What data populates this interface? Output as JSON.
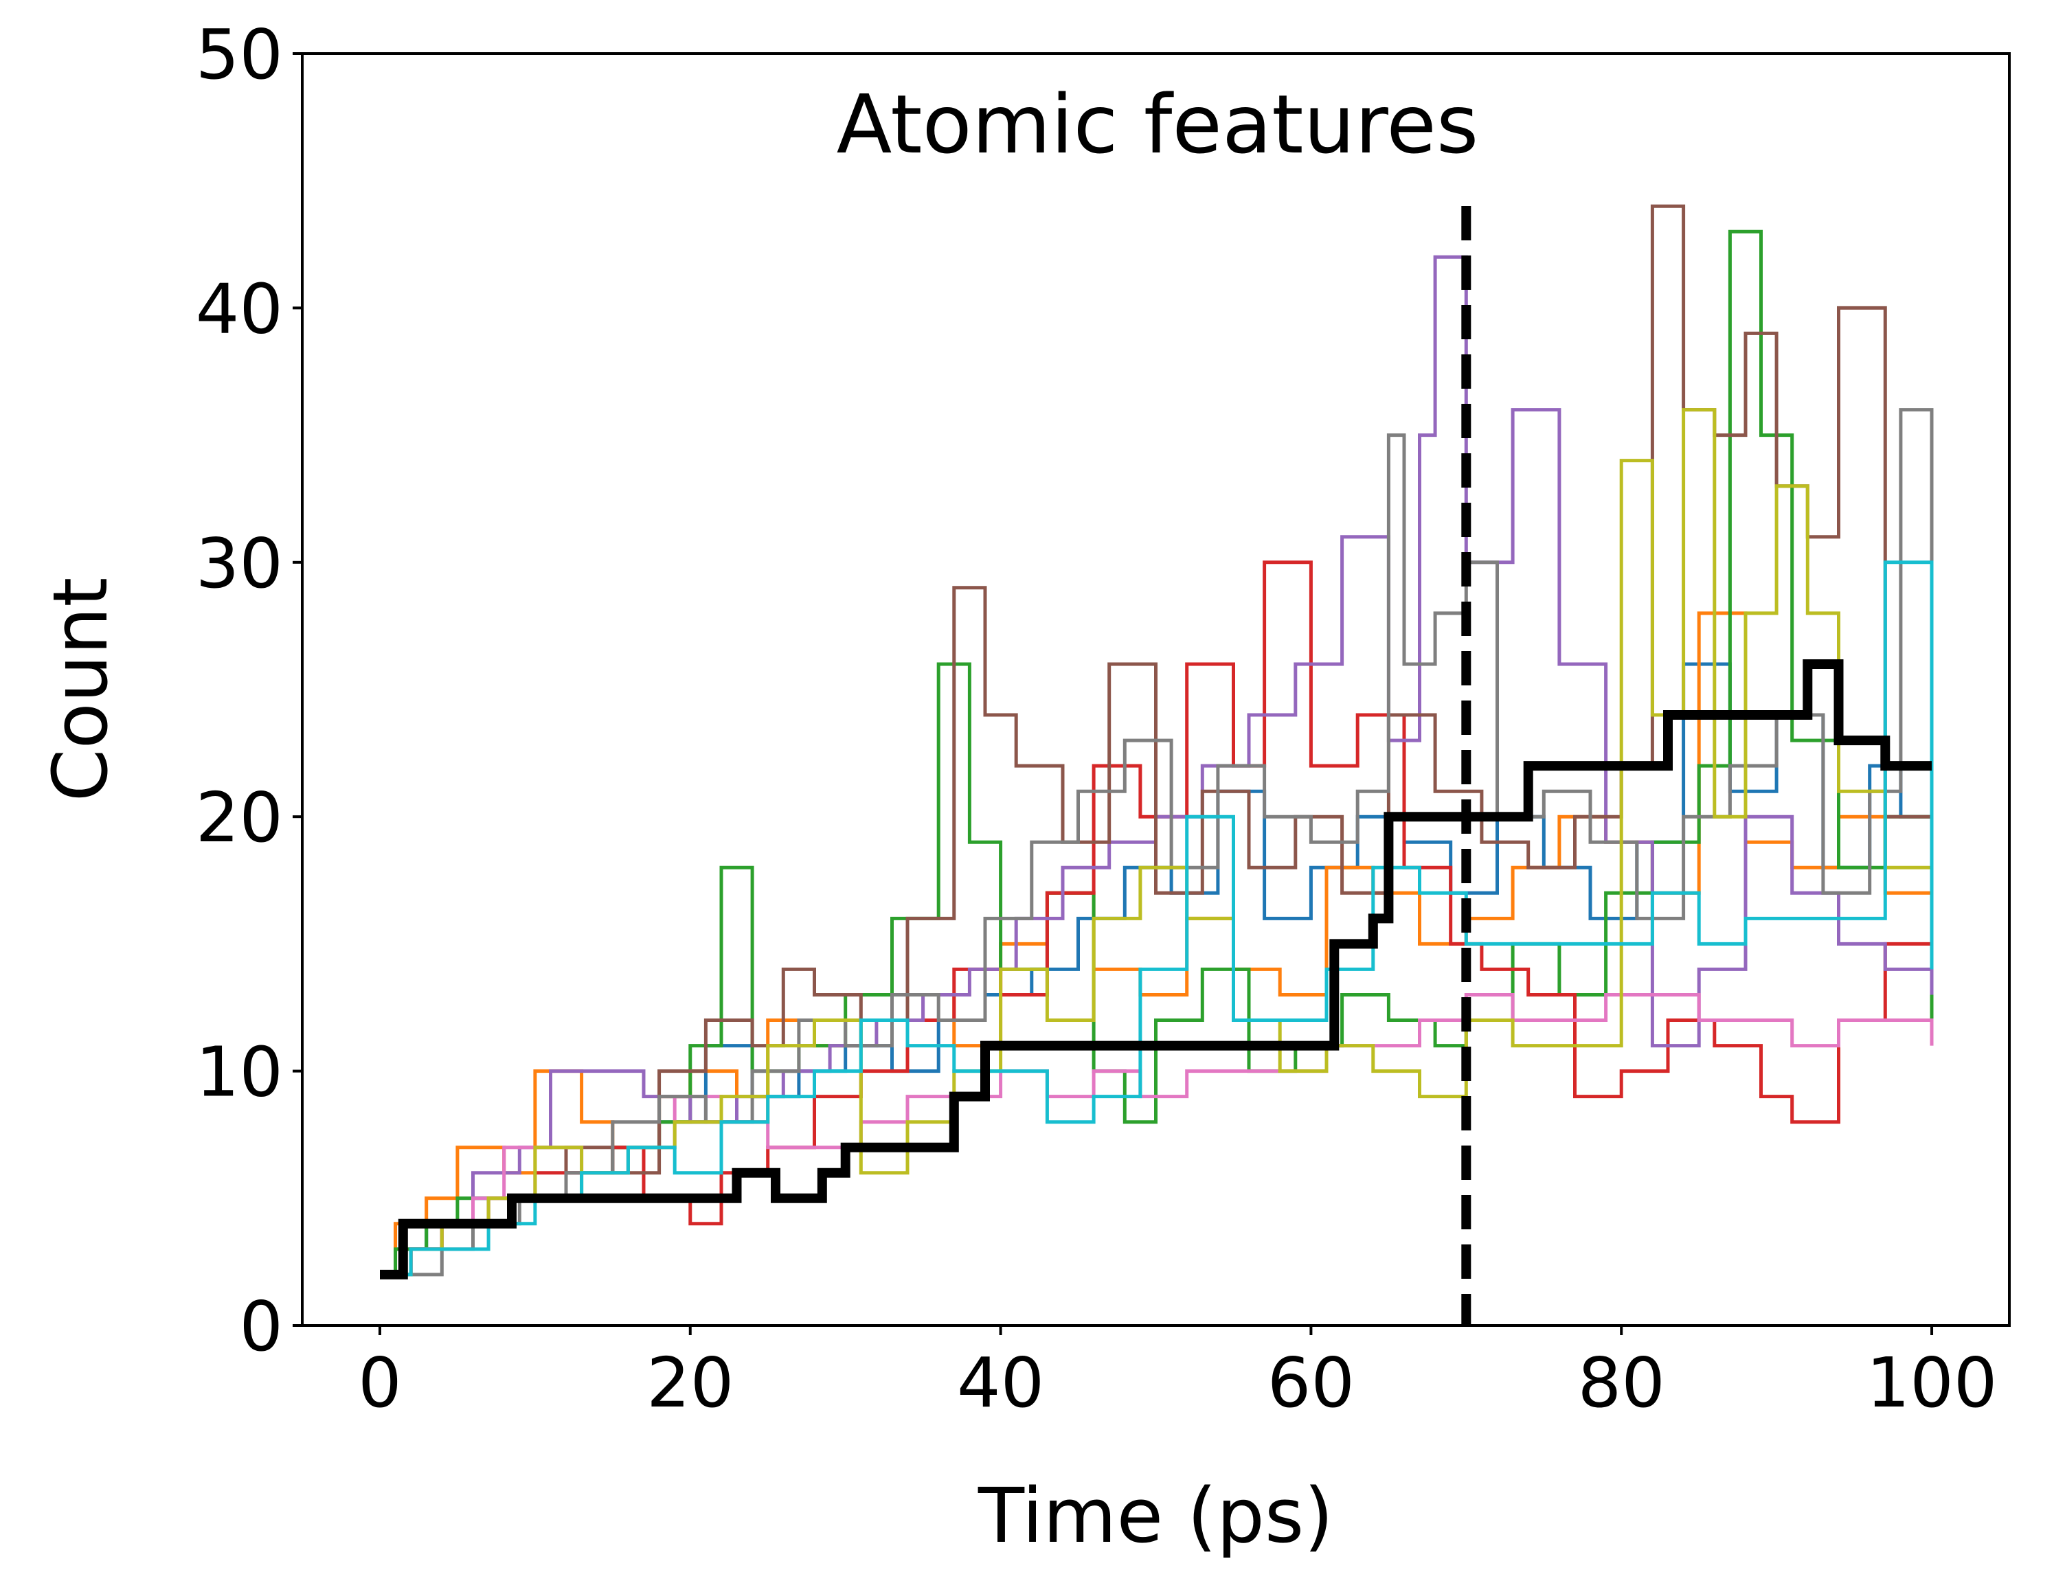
{
  "chart_data": {
    "type": "line",
    "title": "Atomic features",
    "xlabel": "Time (ps)",
    "ylabel": "Count",
    "xlim": [
      -5,
      105
    ],
    "ylim": [
      0,
      50
    ],
    "xticks": [
      0,
      20,
      40,
      60,
      80,
      100
    ],
    "yticks": [
      0,
      10,
      20,
      30,
      40,
      50
    ],
    "grid": false,
    "legend": "none",
    "series": [
      {
        "color": "#1f77b4",
        "x": [
          0,
          1,
          3,
          6,
          9,
          12,
          15,
          18,
          21,
          24,
          27,
          30,
          33,
          36,
          39,
          42,
          45,
          48,
          51,
          54,
          57,
          60,
          63,
          66,
          69,
          72,
          75,
          78,
          81,
          84,
          87,
          90,
          93,
          96,
          98,
          100
        ],
        "y": [
          2,
          3,
          4,
          5,
          5,
          6,
          7,
          8,
          11,
          9,
          10,
          11,
          10,
          12,
          13,
          14,
          16,
          18,
          17,
          21,
          16,
          18,
          20,
          19,
          17,
          20,
          18,
          16,
          19,
          26,
          21,
          24,
          18,
          22,
          20,
          24
        ]
      },
      {
        "color": "#ff7f0e",
        "x": [
          0,
          1,
          3,
          5,
          8,
          10,
          13,
          15,
          18,
          20,
          23,
          25,
          28,
          31,
          34,
          37,
          40,
          43,
          46,
          49,
          52,
          55,
          58,
          61,
          64,
          67,
          70,
          73,
          76,
          79,
          82,
          85,
          88,
          91,
          94,
          97,
          100
        ],
        "y": [
          2,
          4,
          5,
          7,
          6,
          10,
          8,
          7,
          9,
          10,
          8,
          12,
          11,
          12,
          13,
          11,
          15,
          17,
          14,
          13,
          16,
          14,
          13,
          18,
          17,
          15,
          16,
          18,
          20,
          19,
          17,
          28,
          19,
          18,
          20,
          17,
          12
        ]
      },
      {
        "color": "#2ca02c",
        "x": [
          0,
          1,
          3,
          5,
          8,
          10,
          13,
          15,
          18,
          20,
          22,
          24,
          27,
          30,
          33,
          36,
          38,
          40,
          43,
          46,
          48,
          50,
          53,
          56,
          59,
          62,
          65,
          68,
          70,
          73,
          76,
          79,
          82,
          85,
          87,
          89,
          91,
          94,
          97,
          100
        ],
        "y": [
          2,
          3,
          4,
          5,
          5,
          5,
          6,
          7,
          8,
          11,
          18,
          10,
          11,
          13,
          16,
          26,
          19,
          14,
          17,
          10,
          8,
          12,
          14,
          10,
          11,
          13,
          12,
          11,
          12,
          15,
          13,
          17,
          19,
          22,
          43,
          35,
          23,
          18,
          20,
          12
        ]
      },
      {
        "color": "#d62728",
        "x": [
          0,
          2,
          4,
          7,
          10,
          13,
          15,
          17,
          20,
          22,
          25,
          28,
          31,
          34,
          37,
          40,
          43,
          46,
          49,
          52,
          55,
          57,
          60,
          63,
          66,
          69,
          71,
          74,
          77,
          80,
          83,
          86,
          89,
          91,
          94,
          97,
          100
        ],
        "y": [
          2,
          3,
          4,
          5,
          6,
          6,
          7,
          5,
          4,
          6,
          7,
          9,
          10,
          12,
          14,
          13,
          17,
          22,
          20,
          26,
          22,
          30,
          22,
          24,
          18,
          15,
          14,
          13,
          9,
          10,
          12,
          11,
          9,
          8,
          12,
          15,
          14
        ]
      },
      {
        "color": "#9467bd",
        "x": [
          0,
          2,
          4,
          6,
          9,
          11,
          14,
          17,
          20,
          23,
          26,
          29,
          32,
          35,
          38,
          41,
          44,
          47,
          50,
          53,
          56,
          59,
          62,
          65,
          67,
          68,
          70,
          73,
          76,
          79,
          82,
          85,
          88,
          91,
          94,
          97,
          100
        ],
        "y": [
          2,
          3,
          4,
          6,
          7,
          10,
          10,
          9,
          8,
          9,
          10,
          11,
          12,
          13,
          14,
          16,
          18,
          19,
          20,
          22,
          24,
          26,
          31,
          23,
          35,
          42,
          30,
          36,
          26,
          19,
          11,
          14,
          20,
          17,
          15,
          14,
          13
        ]
      },
      {
        "color": "#8c564b",
        "x": [
          0,
          2,
          4,
          7,
          10,
          12,
          15,
          18,
          21,
          24,
          26,
          28,
          31,
          34,
          37,
          39,
          41,
          44,
          47,
          50,
          53,
          56,
          59,
          62,
          65,
          68,
          71,
          74,
          77,
          80,
          82,
          84,
          86,
          88,
          90,
          92,
          94,
          97,
          100
        ],
        "y": [
          2,
          3,
          4,
          5,
          5,
          7,
          6,
          10,
          12,
          11,
          14,
          13,
          12,
          16,
          29,
          24,
          22,
          19,
          26,
          17,
          21,
          18,
          20,
          17,
          24,
          21,
          19,
          18,
          20,
          22,
          44,
          36,
          35,
          39,
          33,
          31,
          40,
          20,
          15
        ]
      },
      {
        "color": "#e377c2",
        "x": [
          0,
          2,
          4,
          6,
          8,
          10,
          13,
          16,
          19,
          22,
          25,
          28,
          31,
          34,
          37,
          40,
          43,
          46,
          49,
          52,
          55,
          58,
          61,
          64,
          67,
          70,
          73,
          76,
          79,
          82,
          85,
          88,
          91,
          94,
          97,
          100
        ],
        "y": [
          2,
          3,
          4,
          5,
          7,
          7,
          6,
          7,
          9,
          8,
          7,
          7,
          8,
          9,
          9,
          10,
          9,
          10,
          9,
          10,
          10,
          10,
          11,
          11,
          12,
          13,
          12,
          12,
          13,
          13,
          12,
          12,
          11,
          12,
          12,
          11
        ]
      },
      {
        "color": "#7f7f7f",
        "x": [
          0,
          2,
          4,
          6,
          9,
          12,
          15,
          18,
          21,
          24,
          27,
          30,
          33,
          36,
          39,
          42,
          45,
          48,
          51,
          54,
          57,
          60,
          63,
          65,
          66,
          68,
          70,
          72,
          75,
          78,
          81,
          84,
          87,
          90,
          93,
          96,
          98,
          100
        ],
        "y": [
          2,
          2,
          3,
          4,
          5,
          6,
          8,
          9,
          8,
          10,
          12,
          11,
          13,
          12,
          16,
          19,
          21,
          23,
          18,
          22,
          20,
          19,
          21,
          35,
          26,
          28,
          30,
          20,
          21,
          19,
          16,
          20,
          22,
          24,
          17,
          21,
          36,
          30
        ]
      },
      {
        "color": "#bcbd22",
        "x": [
          0,
          2,
          4,
          7,
          10,
          13,
          16,
          19,
          22,
          25,
          28,
          31,
          34,
          37,
          40,
          43,
          46,
          49,
          52,
          55,
          58,
          61,
          64,
          67,
          70,
          73,
          76,
          78,
          80,
          82,
          84,
          86,
          88,
          90,
          92,
          94,
          97,
          100
        ],
        "y": [
          2,
          3,
          4,
          5,
          7,
          6,
          7,
          8,
          9,
          11,
          12,
          6,
          8,
          10,
          14,
          12,
          16,
          18,
          16,
          12,
          10,
          11,
          10,
          9,
          12,
          11,
          11,
          11,
          34,
          24,
          36,
          20,
          28,
          33,
          28,
          21,
          18,
          19
        ]
      },
      {
        "color": "#17becf",
        "x": [
          0,
          2,
          4,
          7,
          10,
          13,
          16,
          19,
          22,
          25,
          28,
          31,
          34,
          37,
          40,
          43,
          46,
          49,
          52,
          55,
          58,
          61,
          64,
          67,
          70,
          73,
          76,
          79,
          82,
          85,
          88,
          91,
          94,
          97,
          100
        ],
        "y": [
          2,
          3,
          3,
          4,
          5,
          6,
          7,
          6,
          8,
          9,
          10,
          12,
          11,
          10,
          10,
          8,
          9,
          14,
          20,
          12,
          12,
          14,
          18,
          17,
          15,
          15,
          15,
          15,
          17,
          15,
          16,
          16,
          16,
          30,
          14
        ]
      },
      {
        "color": "#000000",
        "thick": true,
        "x": [
          0,
          1.5,
          5,
          8.5,
          15,
          23,
          25.5,
          28.5,
          30,
          37,
          39,
          44,
          60,
          61.5,
          64,
          65,
          74,
          83,
          85,
          92,
          94,
          97,
          98,
          100
        ],
        "y": [
          2,
          4,
          4,
          5,
          5,
          6,
          5,
          6,
          7,
          9,
          11,
          11,
          11,
          15,
          16,
          20,
          22,
          24,
          24,
          26,
          23,
          22,
          22,
          22
        ]
      }
    ],
    "vline": {
      "x": 70,
      "style": "dashed",
      "color": "#000000"
    }
  }
}
